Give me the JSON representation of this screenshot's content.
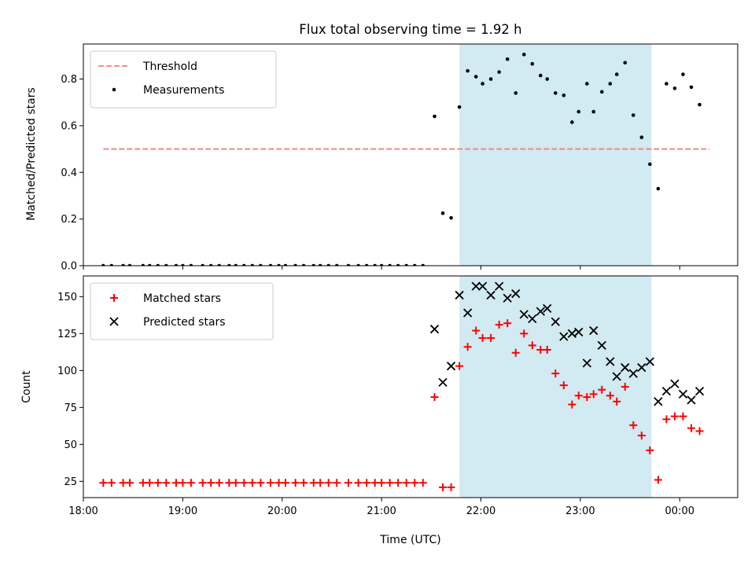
{
  "chart_data": [
    {
      "type": "scatter",
      "title": "Flux total observing time = 1.92 h",
      "xlabel": "",
      "ylabel": "Matched/Predicted stars",
      "xlim": [
        "18:00",
        "00:35"
      ],
      "ylim": [
        0,
        0.95
      ],
      "yticks": [
        0.0,
        0.2,
        0.4,
        0.6,
        0.8
      ],
      "ytick_labels": [
        "0.0",
        "0.2",
        "0.4",
        "0.6",
        "0.8"
      ],
      "xticks": [
        "18:00",
        "19:00",
        "20:00",
        "21:00",
        "22:00",
        "23:00",
        "00:00"
      ],
      "show_xtick_labels": false,
      "grid": false,
      "legend_position": "upper-left",
      "shaded_region": {
        "x": [
          "21:47",
          "23:43"
        ],
        "color": "#add8e6"
      },
      "threshold": {
        "name": "Threshold",
        "x": [
          "18:12",
          "00:18"
        ],
        "y": 0.5,
        "color": "#f08080",
        "style": "dashed"
      },
      "series": [
        {
          "name": "Measurements",
          "color": "#000000",
          "marker": "dot",
          "points": [
            [
              "18:12",
              0
            ],
            [
              "18:17",
              0
            ],
            [
              "18:24",
              0
            ],
            [
              "18:28",
              0
            ],
            [
              "18:36",
              0
            ],
            [
              "18:40",
              0
            ],
            [
              "18:45",
              0
            ],
            [
              "18:50",
              0
            ],
            [
              "18:56",
              0
            ],
            [
              "19:00",
              0
            ],
            [
              "19:05",
              0
            ],
            [
              "19:12",
              0
            ],
            [
              "19:17",
              0
            ],
            [
              "19:22",
              0
            ],
            [
              "19:28",
              0
            ],
            [
              "19:32",
              0
            ],
            [
              "19:37",
              0
            ],
            [
              "19:42",
              0
            ],
            [
              "19:47",
              0
            ],
            [
              "19:53",
              0
            ],
            [
              "19:58",
              0
            ],
            [
              "20:02",
              0
            ],
            [
              "20:08",
              0
            ],
            [
              "20:13",
              0
            ],
            [
              "20:19",
              0
            ],
            [
              "20:23",
              0
            ],
            [
              "20:28",
              0
            ],
            [
              "20:33",
              0
            ],
            [
              "20:40",
              0
            ],
            [
              "20:46",
              0
            ],
            [
              "20:51",
              0
            ],
            [
              "20:56",
              0
            ],
            [
              "21:00",
              0
            ],
            [
              "21:05",
              0
            ],
            [
              "21:10",
              0
            ],
            [
              "21:15",
              0
            ],
            [
              "21:20",
              0
            ],
            [
              "21:25",
              0
            ],
            [
              "21:32",
              0.64
            ],
            [
              "21:37",
              0.225
            ],
            [
              "21:42",
              0.205
            ],
            [
              "21:47",
              0.68
            ],
            [
              "21:52",
              0.835
            ],
            [
              "21:57",
              0.81
            ],
            [
              "22:01",
              0.78
            ],
            [
              "22:06",
              0.8
            ],
            [
              "22:11",
              0.83
            ],
            [
              "22:16",
              0.885
            ],
            [
              "22:21",
              0.74
            ],
            [
              "22:26",
              0.905
            ],
            [
              "22:31",
              0.865
            ],
            [
              "22:36",
              0.815
            ],
            [
              "22:40",
              0.8
            ],
            [
              "22:45",
              0.74
            ],
            [
              "22:50",
              0.73
            ],
            [
              "22:55",
              0.615
            ],
            [
              "22:59",
              0.66
            ],
            [
              "23:04",
              0.78
            ],
            [
              "23:08",
              0.66
            ],
            [
              "23:13",
              0.745
            ],
            [
              "23:18",
              0.78
            ],
            [
              "23:22",
              0.82
            ],
            [
              "23:27",
              0.87
            ],
            [
              "23:32",
              0.645
            ],
            [
              "23:37",
              0.55
            ],
            [
              "23:42",
              0.435
            ],
            [
              "23:47",
              0.33
            ],
            [
              "23:52",
              0.78
            ],
            [
              "23:57",
              0.76
            ],
            [
              "00:02",
              0.82
            ],
            [
              "00:07",
              0.765
            ],
            [
              "00:12",
              0.69
            ]
          ]
        }
      ]
    },
    {
      "type": "scatter",
      "title": "",
      "xlabel": "Time (UTC)",
      "ylabel": "Count",
      "xlim": [
        "18:00",
        "00:35"
      ],
      "ylim": [
        14,
        164
      ],
      "yticks": [
        25,
        50,
        75,
        100,
        125,
        150
      ],
      "ytick_labels": [
        "25",
        "50",
        "75",
        "100",
        "125",
        "150"
      ],
      "xticks": [
        "18:00",
        "19:00",
        "20:00",
        "21:00",
        "22:00",
        "23:00",
        "00:00"
      ],
      "xtick_labels": [
        "18:00",
        "19:00",
        "20:00",
        "21:00",
        "22:00",
        "23:00",
        "00:00"
      ],
      "grid": false,
      "legend_position": "upper-left",
      "shaded_region": {
        "x": [
          "21:47",
          "23:43"
        ],
        "color": "#add8e6"
      },
      "series": [
        {
          "name": "Matched stars",
          "color": "#ff0000",
          "marker": "plus",
          "points": [
            [
              "18:12",
              24
            ],
            [
              "18:17",
              24
            ],
            [
              "18:24",
              24
            ],
            [
              "18:28",
              24
            ],
            [
              "18:36",
              24
            ],
            [
              "18:40",
              24
            ],
            [
              "18:45",
              24
            ],
            [
              "18:50",
              24
            ],
            [
              "18:56",
              24
            ],
            [
              "19:00",
              24
            ],
            [
              "19:05",
              24
            ],
            [
              "19:12",
              24
            ],
            [
              "19:17",
              24
            ],
            [
              "19:22",
              24
            ],
            [
              "19:28",
              24
            ],
            [
              "19:32",
              24
            ],
            [
              "19:37",
              24
            ],
            [
              "19:42",
              24
            ],
            [
              "19:47",
              24
            ],
            [
              "19:53",
              24
            ],
            [
              "19:58",
              24
            ],
            [
              "20:02",
              24
            ],
            [
              "20:08",
              24
            ],
            [
              "20:13",
              24
            ],
            [
              "20:19",
              24
            ],
            [
              "20:23",
              24
            ],
            [
              "20:28",
              24
            ],
            [
              "20:33",
              24
            ],
            [
              "20:40",
              24
            ],
            [
              "20:46",
              24
            ],
            [
              "20:51",
              24
            ],
            [
              "20:56",
              24
            ],
            [
              "21:00",
              24
            ],
            [
              "21:05",
              24
            ],
            [
              "21:10",
              24
            ],
            [
              "21:15",
              24
            ],
            [
              "21:20",
              24
            ],
            [
              "21:25",
              24
            ],
            [
              "21:32",
              82
            ],
            [
              "21:37",
              21
            ],
            [
              "21:42",
              21
            ],
            [
              "21:47",
              103
            ],
            [
              "21:52",
              116
            ],
            [
              "21:57",
              127
            ],
            [
              "22:01",
              122
            ],
            [
              "22:06",
              122
            ],
            [
              "22:11",
              131
            ],
            [
              "22:16",
              132
            ],
            [
              "22:21",
              112
            ],
            [
              "22:26",
              125
            ],
            [
              "22:31",
              117
            ],
            [
              "22:36",
              114
            ],
            [
              "22:40",
              114
            ],
            [
              "22:45",
              98
            ],
            [
              "22:50",
              90
            ],
            [
              "22:55",
              77
            ],
            [
              "22:59",
              83
            ],
            [
              "23:04",
              82
            ],
            [
              "23:08",
              84
            ],
            [
              "23:13",
              87
            ],
            [
              "23:18",
              83
            ],
            [
              "23:22",
              79
            ],
            [
              "23:27",
              89
            ],
            [
              "23:32",
              63
            ],
            [
              "23:37",
              56
            ],
            [
              "23:42",
              46
            ],
            [
              "23:47",
              26
            ],
            [
              "23:52",
              67
            ],
            [
              "23:57",
              69
            ],
            [
              "00:02",
              69
            ],
            [
              "00:07",
              61
            ],
            [
              "00:12",
              59
            ]
          ]
        },
        {
          "name": "Predicted stars",
          "color": "#000000",
          "marker": "x",
          "points": [
            [
              "21:32",
              128
            ],
            [
              "21:37",
              92
            ],
            [
              "21:42",
              103
            ],
            [
              "21:47",
              151
            ],
            [
              "21:52",
              139
            ],
            [
              "21:57",
              157
            ],
            [
              "22:01",
              157
            ],
            [
              "22:06",
              151
            ],
            [
              "22:11",
              157
            ],
            [
              "22:16",
              149
            ],
            [
              "22:21",
              152
            ],
            [
              "22:26",
              138
            ],
            [
              "22:31",
              135
            ],
            [
              "22:36",
              140
            ],
            [
              "22:40",
              142
            ],
            [
              "22:45",
              133
            ],
            [
              "22:50",
              123
            ],
            [
              "22:55",
              125
            ],
            [
              "22:59",
              126
            ],
            [
              "23:04",
              105
            ],
            [
              "23:08",
              127
            ],
            [
              "23:13",
              117
            ],
            [
              "23:18",
              106
            ],
            [
              "23:22",
              96
            ],
            [
              "23:27",
              102
            ],
            [
              "23:32",
              98
            ],
            [
              "23:37",
              102
            ],
            [
              "23:42",
              106
            ],
            [
              "23:47",
              79
            ],
            [
              "23:52",
              86
            ],
            [
              "23:57",
              91
            ],
            [
              "00:02",
              84
            ],
            [
              "00:07",
              80
            ],
            [
              "00:12",
              86
            ]
          ]
        }
      ]
    }
  ]
}
